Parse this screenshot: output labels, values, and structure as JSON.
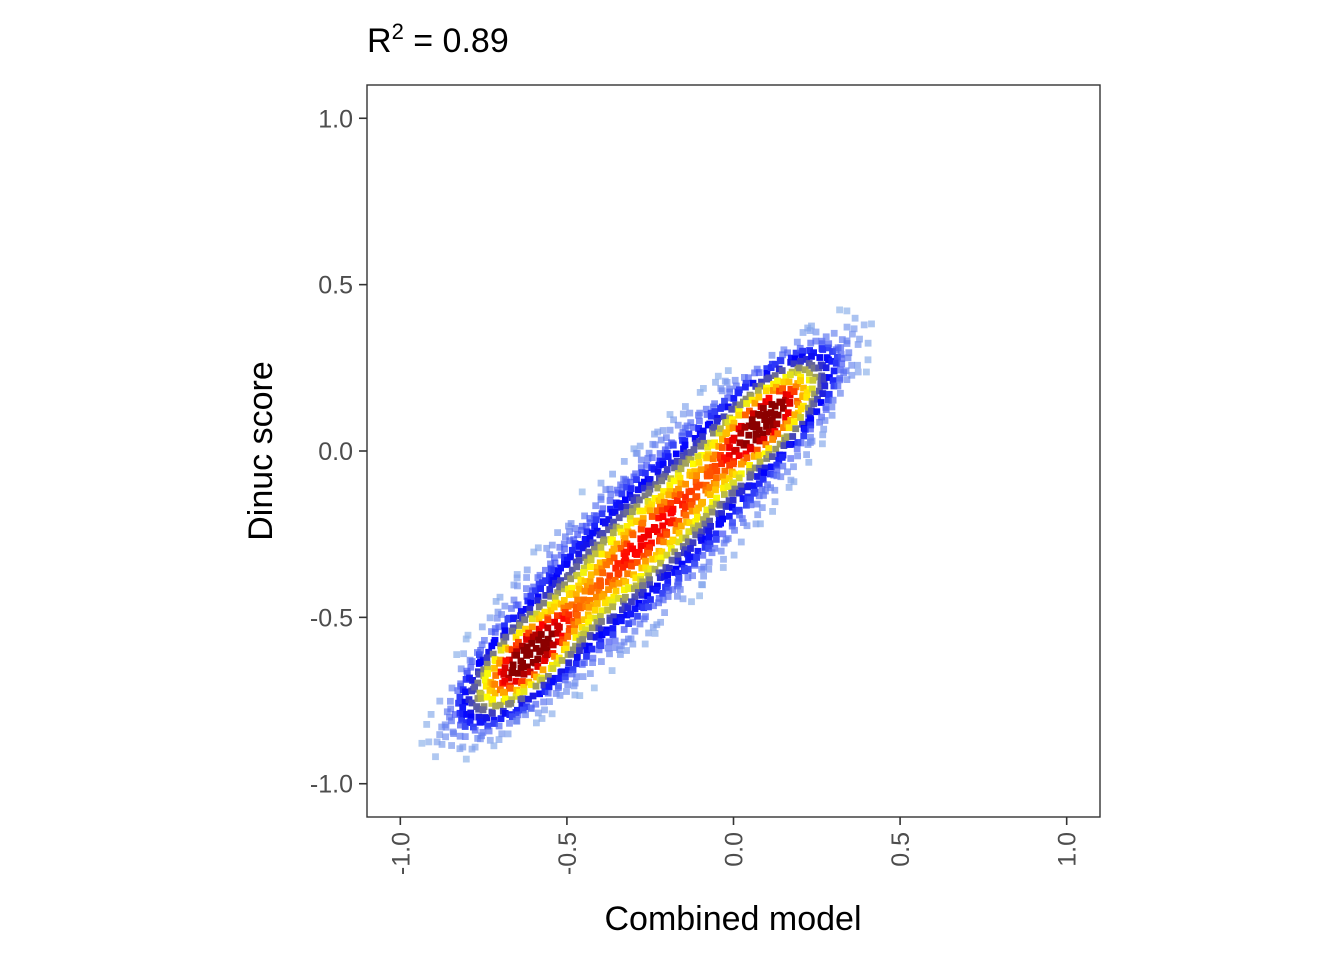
{
  "chart_data": {
    "type": "scatter",
    "title_prefix": "R",
    "title_superscript": "2",
    "title_suffix": " = 0.89",
    "xlabel": "Combined model",
    "ylabel": "Dinuc score",
    "xlim": [
      -1.1,
      1.1
    ],
    "ylim": [
      -1.1,
      1.1
    ],
    "xticks": [
      -1.0,
      -0.5,
      0.0,
      0.5,
      1.0
    ],
    "xtick_labels": [
      "-1.0",
      "-0.5",
      "0.0",
      "0.5",
      "1.0"
    ],
    "yticks": [
      -1.0,
      -0.5,
      0.0,
      0.5,
      1.0
    ],
    "ytick_labels": [
      "-1.0",
      "-0.5",
      "0.0",
      "0.5",
      "1.0"
    ],
    "grid": false,
    "density_colormap": [
      "#add8e6",
      "#0000ff",
      "#ffff00",
      "#ffa500",
      "#ff0000",
      "#8b0000"
    ],
    "density_clusters": [
      {
        "center_x": -0.62,
        "center_y": -0.62,
        "spread_along": 0.11,
        "spread_across": 0.045,
        "weight": 1.0
      },
      {
        "center_x": 0.1,
        "center_y": 0.1,
        "spread_along": 0.11,
        "spread_across": 0.045,
        "weight": 0.95
      },
      {
        "center_x": -0.25,
        "center_y": -0.25,
        "spread_along": 0.3,
        "spread_across": 0.05,
        "weight": 0.55
      },
      {
        "center_x": -0.25,
        "center_y": -0.25,
        "spread_along": 0.38,
        "spread_across": 0.1,
        "weight": 0.25
      }
    ]
  }
}
